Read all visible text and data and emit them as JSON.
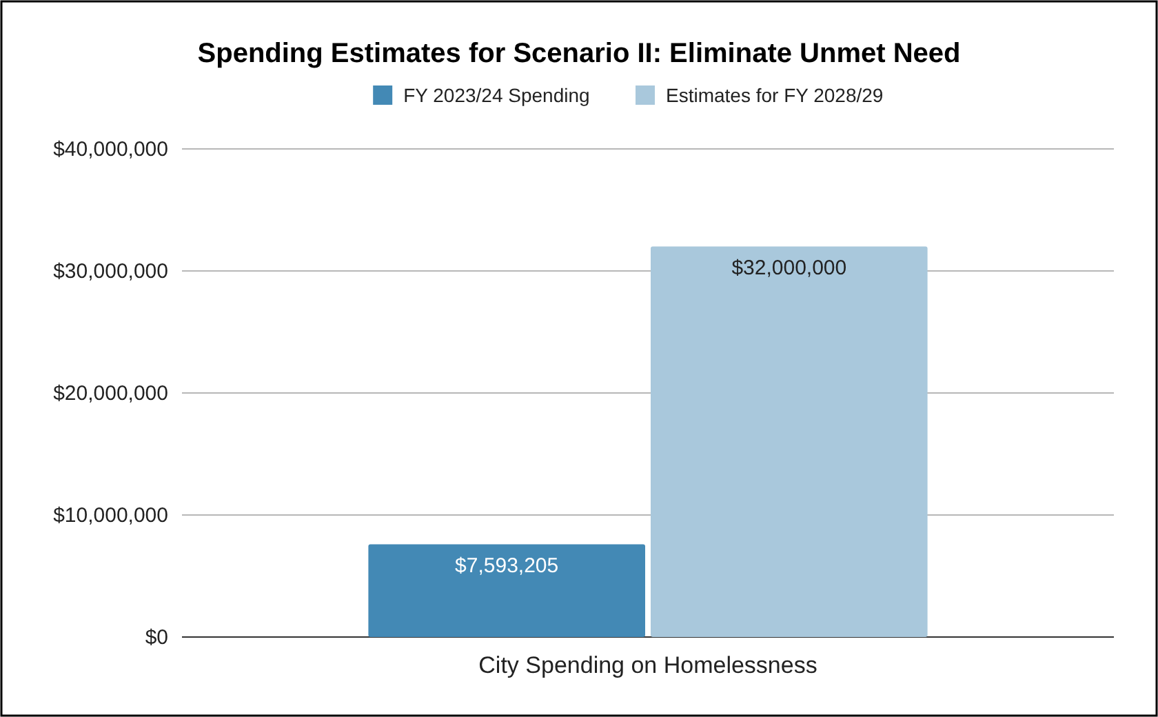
{
  "chart_data": {
    "type": "bar",
    "title": "Spending Estimates for Scenario II: Eliminate Unmet Need",
    "categories": [
      "City Spending on Homelessness"
    ],
    "series": [
      {
        "name": "FY 2023/24 Spending",
        "color": "#4389b5",
        "values": [
          7593205
        ],
        "value_labels": [
          "$7,593,205"
        ]
      },
      {
        "name": "Estimates for FY 2028/29",
        "color": "#a9c8dc",
        "values": [
          32000000
        ],
        "value_labels": [
          "$32,000,000"
        ]
      }
    ],
    "ylim": [
      0,
      40000000
    ],
    "yticks": [
      {
        "value": 0,
        "label": "$0"
      },
      {
        "value": 10000000,
        "label": "$10,000,000"
      },
      {
        "value": 20000000,
        "label": "$20,000,000"
      },
      {
        "value": 30000000,
        "label": "$30,000,000"
      },
      {
        "value": 40000000,
        "label": "$40,000,000"
      }
    ],
    "grid": "y",
    "legend": "top"
  }
}
